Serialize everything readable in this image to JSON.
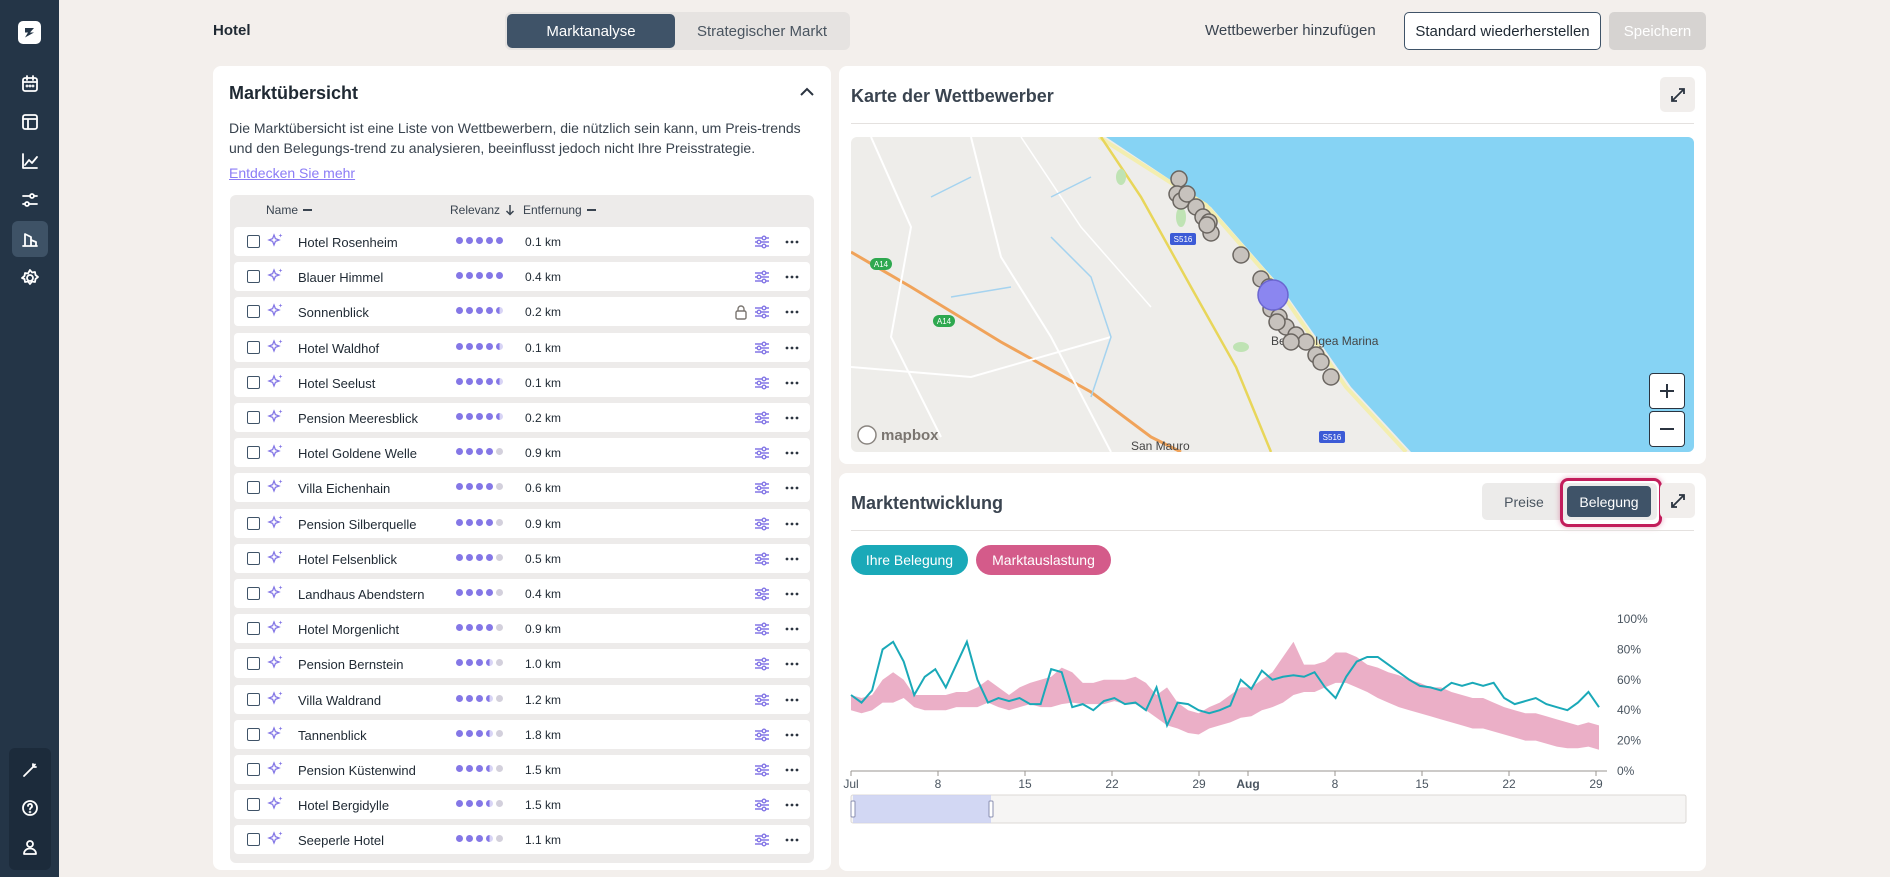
{
  "header": {
    "hotel_label": "Hotel",
    "tabs": [
      {
        "label": "Marktanalyse",
        "active": true
      },
      {
        "label": "Strategischer Markt",
        "active": false
      }
    ],
    "add_competitor": "Wettbewerber hinzufügen",
    "restore_default": "Standard wiederherstellen",
    "save": "Speichern"
  },
  "sidebar": {
    "items": [
      "calendar-icon",
      "layout-icon",
      "chart-line-icon",
      "sliders-icon",
      "market-icon",
      "settings-icon"
    ],
    "active": "market-icon",
    "bottom_items": [
      "magic-wand-icon",
      "help-icon",
      "user-icon"
    ]
  },
  "market_overview": {
    "title": "Marktübersicht",
    "description": "Die Marktübersicht ist eine Liste von Wettbewerbern, die nützlich sein kann, um Preis-trends und den Belegungs-trend zu analysieren, beeinflusst jedoch nicht Ihre Preisstrategie.",
    "learn_more": "Entdecken Sie mehr",
    "columns": {
      "name": "Name",
      "relevance": "Relevanz",
      "distance": "Entfernung"
    },
    "rows": [
      {
        "name": "Hotel Rosenheim",
        "dots": [
          1,
          1,
          1,
          1,
          1
        ],
        "distance": "0.1 km",
        "locked": false
      },
      {
        "name": "Blauer Himmel",
        "dots": [
          1,
          1,
          1,
          1,
          1
        ],
        "distance": "0.4 km",
        "locked": false
      },
      {
        "name": "Sonnenblick",
        "dots": [
          1,
          1,
          1,
          1,
          0.5
        ],
        "distance": "0.2 km",
        "locked": true
      },
      {
        "name": "Hotel Waldhof",
        "dots": [
          1,
          1,
          1,
          1,
          0.5
        ],
        "distance": "0.1 km",
        "locked": false
      },
      {
        "name": "Hotel Seelust",
        "dots": [
          1,
          1,
          1,
          1,
          0.5
        ],
        "distance": "0.1 km",
        "locked": false
      },
      {
        "name": "Pension Meeresblick",
        "dots": [
          1,
          1,
          1,
          1,
          0.5
        ],
        "distance": "0.2 km",
        "locked": false
      },
      {
        "name": "Hotel Goldene Welle",
        "dots": [
          1,
          1,
          1,
          1,
          0
        ],
        "distance": "0.9 km",
        "locked": false
      },
      {
        "name": "Villa Eichenhain",
        "dots": [
          1,
          1,
          1,
          1,
          0
        ],
        "distance": "0.6 km",
        "locked": false
      },
      {
        "name": "Pension Silberquelle",
        "dots": [
          1,
          1,
          1,
          1,
          0
        ],
        "distance": "0.9 km",
        "locked": false
      },
      {
        "name": "Hotel Felsenblick",
        "dots": [
          1,
          1,
          1,
          1,
          0
        ],
        "distance": "0.5 km",
        "locked": false
      },
      {
        "name": "Landhaus Abendstern",
        "dots": [
          1,
          1,
          1,
          1,
          0
        ],
        "distance": "0.4 km",
        "locked": false
      },
      {
        "name": "Hotel Morgenlicht",
        "dots": [
          1,
          1,
          1,
          1,
          0
        ],
        "distance": "0.9 km",
        "locked": false
      },
      {
        "name": "Pension Bernstein",
        "dots": [
          1,
          1,
          1,
          0.5,
          0
        ],
        "distance": "1.0 km",
        "locked": false
      },
      {
        "name": "Villa Waldrand",
        "dots": [
          1,
          1,
          1,
          0.5,
          0
        ],
        "distance": "1.2 km",
        "locked": false
      },
      {
        "name": "Tannenblick",
        "dots": [
          1,
          1,
          1,
          0.5,
          0
        ],
        "distance": "1.8 km",
        "locked": false
      },
      {
        "name": "Pension Küstenwind",
        "dots": [
          1,
          1,
          1,
          0.5,
          0
        ],
        "distance": "1.5 km",
        "locked": false
      },
      {
        "name": "Hotel Bergidylle",
        "dots": [
          1,
          1,
          1,
          0.5,
          0
        ],
        "distance": "1.5 km",
        "locked": false
      },
      {
        "name": "Seeperle Hotel",
        "dots": [
          1,
          1,
          1,
          0.5,
          0
        ],
        "distance": "1.1 km",
        "locked": false
      }
    ]
  },
  "competitor_map": {
    "title": "Karte der Wettbewerber",
    "attribution": "mapbox",
    "labels": [
      "S516",
      "A14",
      "A14",
      "S516",
      "Bellaria-Igea Marina",
      "San Mauro"
    ],
    "zoom_in": "+",
    "zoom_out": "−"
  },
  "market_development": {
    "title": "Marktentwicklung",
    "toggle": [
      {
        "label": "Preise",
        "active": false
      },
      {
        "label": "Belegung",
        "active": true
      }
    ],
    "legend": [
      {
        "label": "Ihre Belegung",
        "color": "#1aa9b8"
      },
      {
        "label": "Marktauslastung",
        "color": "#d45b8a"
      }
    ]
  },
  "chart_data": {
    "type": "line",
    "x_ticks": [
      "Jul",
      "8",
      "15",
      "22",
      "29",
      "Aug",
      "8",
      "15",
      "22",
      "29"
    ],
    "y_ticks": [
      "100%",
      "80%",
      "60%",
      "40%",
      "20%",
      "0%"
    ],
    "ylim": [
      0,
      100
    ],
    "series": [
      {
        "name": "Ihre Belegung",
        "color": "#1aa9b8",
        "values": [
          50,
          45,
          53,
          80,
          85,
          72,
          50,
          62,
          67,
          55,
          70,
          85,
          60,
          45,
          48,
          46,
          48,
          44,
          44,
          67,
          65,
          42,
          44,
          40,
          46,
          48,
          44,
          45,
          40,
          55,
          30,
          45,
          44,
          40,
          38,
          40,
          43,
          60,
          54,
          66,
          60,
          62,
          63,
          62,
          65,
          55,
          48,
          62,
          72,
          75,
          75,
          70,
          65,
          60,
          56,
          55,
          53,
          58,
          56,
          58,
          56,
          58,
          48,
          44,
          46,
          48,
          44,
          42,
          40,
          45,
          52,
          42
        ]
      },
      {
        "name": "Marktauslastung",
        "color": "#e7a1bd",
        "upper": [
          50,
          48,
          50,
          60,
          65,
          60,
          50,
          50,
          50,
          50,
          52,
          52,
          55,
          60,
          55,
          50,
          55,
          58,
          60,
          62,
          68,
          65,
          58,
          58,
          60,
          60,
          60,
          62,
          58,
          50,
          55,
          45,
          40,
          38,
          42,
          45,
          50,
          55,
          55,
          60,
          65,
          75,
          85,
          70,
          70,
          72,
          78,
          78,
          75,
          70,
          68,
          65,
          63,
          60,
          58,
          55,
          55,
          52,
          50,
          48,
          48,
          45,
          42,
          40,
          38,
          38,
          36,
          34,
          32,
          30,
          32,
          30
        ],
        "lower": [
          40,
          38,
          40,
          45,
          45,
          48,
          42,
          40,
          40,
          40,
          42,
          42,
          42,
          45,
          42,
          40,
          42,
          44,
          42,
          42,
          44,
          45,
          44,
          44,
          44,
          46,
          44,
          44,
          40,
          35,
          30,
          28,
          25,
          24,
          28,
          30,
          32,
          35,
          36,
          40,
          42,
          45,
          50,
          52,
          52,
          55,
          58,
          58,
          55,
          52,
          48,
          45,
          42,
          40,
          38,
          36,
          34,
          32,
          30,
          28,
          28,
          26,
          24,
          22,
          20,
          20,
          18,
          16,
          15,
          15,
          16,
          14
        ]
      }
    ]
  }
}
